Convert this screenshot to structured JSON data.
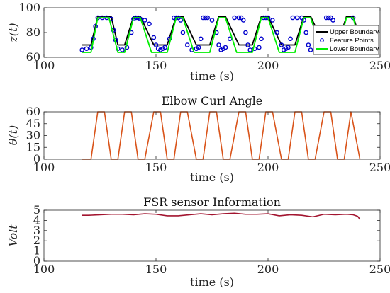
{
  "chart_data": [
    {
      "type": "line",
      "title": "",
      "xlabel": "time (s)",
      "ylabel": "z(t)",
      "xlim": [
        100,
        250
      ],
      "ylim": [
        60,
        100
      ],
      "xticks": [
        "100",
        "150",
        "200",
        "250"
      ],
      "yticks": [
        "60",
        "80",
        "100"
      ],
      "grid": false,
      "legend": "right",
      "series": [
        {
          "name": "Upper Boundary",
          "color": "#000000",
          "style": "line",
          "x": [
            117,
            121,
            124,
            130,
            133,
            136,
            140,
            143,
            149,
            152,
            155,
            159,
            162,
            168,
            171,
            174,
            178,
            181,
            187,
            190,
            193,
            197,
            200,
            206,
            209,
            212,
            216,
            219,
            225,
            228,
            231,
            235,
            238,
            242
          ],
          "y": [
            70,
            70,
            93,
            93,
            70,
            70,
            93,
            93,
            70,
            70,
            70,
            93,
            93,
            70,
            70,
            70,
            93,
            93,
            70,
            70,
            70,
            93,
            93,
            70,
            70,
            70,
            93,
            93,
            70,
            70,
            70,
            93,
            93,
            70
          ]
        },
        {
          "name": "Feature Points",
          "color": "#0000cc",
          "style": "markers",
          "x": [
            117,
            119,
            121,
            122,
            123,
            124,
            126,
            128,
            130,
            131,
            132,
            133,
            135,
            137,
            139,
            140,
            141,
            142,
            143,
            145,
            147,
            149,
            150,
            151,
            152,
            153,
            154,
            156,
            158,
            159,
            160,
            161,
            162,
            164,
            166,
            168,
            169,
            170,
            171,
            172,
            173,
            175,
            177,
            178,
            179,
            180,
            181,
            183,
            185,
            187,
            188,
            189,
            190,
            191,
            192,
            194,
            196,
            197,
            198,
            199,
            200,
            202,
            204,
            206,
            207,
            208,
            209,
            210,
            211,
            213,
            215,
            216,
            217,
            218,
            219,
            221,
            223,
            225,
            226,
            227,
            228,
            229,
            230,
            232,
            234,
            235,
            236,
            237,
            238
          ],
          "y": [
            66,
            67,
            68,
            75,
            85,
            92,
            92,
            92,
            91,
            82,
            74,
            67,
            66,
            68,
            80,
            91,
            92,
            92,
            91,
            90,
            87,
            76,
            70,
            67,
            66,
            67,
            68,
            75,
            92,
            92,
            92,
            90,
            80,
            70,
            66,
            67,
            68,
            75,
            92,
            92,
            92,
            90,
            80,
            70,
            66,
            67,
            68,
            75,
            92,
            92,
            92,
            90,
            80,
            70,
            66,
            67,
            68,
            75,
            92,
            92,
            92,
            90,
            80,
            70,
            66,
            67,
            68,
            75,
            92,
            92,
            92,
            90,
            80,
            70,
            66,
            67,
            68,
            75,
            92,
            92,
            92,
            90,
            80,
            70,
            66,
            67,
            68,
            75,
            92
          ]
        },
        {
          "name": "Lower Boundary",
          "color": "#00ee00",
          "style": "line",
          "x": [
            117,
            121,
            124,
            129,
            133,
            136,
            140,
            143,
            148,
            152,
            155,
            159,
            162,
            167,
            171,
            174,
            178,
            181,
            186,
            190,
            193,
            197,
            200,
            205,
            209,
            212,
            216,
            219,
            224,
            228,
            231,
            235,
            238,
            242
          ],
          "y": [
            64,
            64,
            92,
            92,
            64,
            64,
            92,
            92,
            64,
            64,
            64,
            92,
            92,
            64,
            64,
            64,
            92,
            92,
            64,
            64,
            64,
            92,
            92,
            64,
            64,
            64,
            92,
            92,
            64,
            64,
            64,
            92,
            92,
            64
          ]
        }
      ]
    },
    {
      "type": "line",
      "title": "Elbow Curl Angle",
      "xlabel": "time (s)",
      "ylabel": "θ(t)",
      "xlim": [
        100,
        250
      ],
      "ylim": [
        0,
        60
      ],
      "xticks": [
        "100",
        "150",
        "200",
        "250"
      ],
      "yticks": [
        "0",
        "15",
        "30",
        "45",
        "60"
      ],
      "grid": false,
      "series": [
        {
          "name": "",
          "color": "#d95319",
          "style": "line",
          "x": [
            117,
            121,
            124,
            127,
            130,
            133,
            136,
            139,
            142,
            145,
            149,
            152,
            155,
            158,
            161,
            164,
            168,
            171,
            174,
            177,
            180,
            183,
            187,
            190,
            193,
            196,
            199,
            202,
            206,
            209,
            212,
            215,
            218,
            221,
            225,
            228,
            231,
            234,
            237,
            241
          ],
          "y": [
            0,
            0,
            60,
            60,
            0,
            0,
            60,
            60,
            0,
            0,
            60,
            60,
            0,
            0,
            60,
            60,
            0,
            0,
            60,
            60,
            0,
            0,
            60,
            60,
            0,
            0,
            60,
            60,
            0,
            0,
            60,
            60,
            0,
            0,
            60,
            60,
            0,
            0,
            60,
            0
          ]
        }
      ]
    },
    {
      "type": "line",
      "title": "FSR sensor Information",
      "xlabel": "time (s)",
      "ylabel": "Volt",
      "xlim": [
        100,
        250
      ],
      "ylim": [
        0,
        5
      ],
      "xticks": [
        "100",
        "150",
        "200",
        "250"
      ],
      "yticks": [
        "0",
        "1",
        "2",
        "3",
        "4",
        "5"
      ],
      "grid": false,
      "series": [
        {
          "name": "",
          "color": "#a2142f",
          "style": "line",
          "x": [
            117,
            120,
            125,
            130,
            135,
            140,
            145,
            150,
            155,
            160,
            165,
            170,
            175,
            180,
            185,
            190,
            195,
            200,
            205,
            210,
            215,
            220,
            225,
            230,
            235,
            238,
            240,
            241
          ],
          "y": [
            4.5,
            4.5,
            4.55,
            4.6,
            4.6,
            4.55,
            4.65,
            4.6,
            4.45,
            4.45,
            4.55,
            4.65,
            4.55,
            4.65,
            4.7,
            4.6,
            4.6,
            4.65,
            4.45,
            4.55,
            4.5,
            4.35,
            4.6,
            4.55,
            4.6,
            4.55,
            4.4,
            4.1
          ]
        }
      ]
    }
  ]
}
